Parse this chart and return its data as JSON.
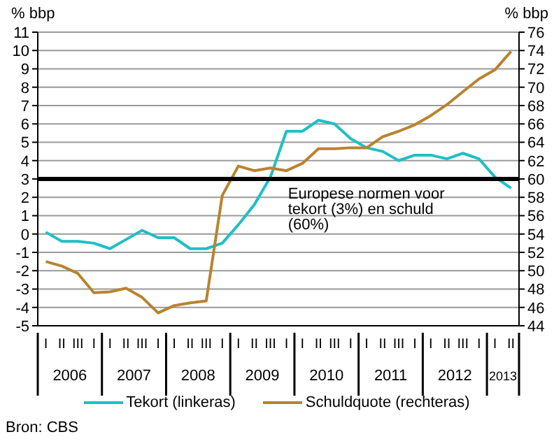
{
  "chart_data": {
    "type": "line",
    "categories": [
      "I",
      "II",
      "III",
      "I",
      "I",
      "II",
      "III",
      "I",
      "I",
      "II",
      "III",
      "I",
      "I",
      "II",
      "III",
      "I",
      "I",
      "II",
      "III",
      "I",
      "I",
      "II",
      "III",
      "I",
      "I",
      "II",
      "III",
      "I",
      "I",
      "II"
    ],
    "ylabel": "% bbp",
    "y2label": "% bbp",
    "ylim": [
      -5,
      11
    ],
    "yticks": [
      -5,
      -4,
      -3,
      -2,
      -1,
      0,
      1,
      2,
      3,
      4,
      5,
      6,
      7,
      8,
      9,
      10,
      11
    ],
    "y2lim": [
      44,
      76
    ],
    "y2ticks": [
      44,
      46,
      48,
      50,
      52,
      54,
      56,
      58,
      60,
      62,
      64,
      66,
      68,
      70,
      72,
      74,
      76
    ],
    "series": [
      {
        "name": "Tekort (linkeras)",
        "color": "#1fbfc6",
        "values": [
          0.1,
          -0.4,
          -0.4,
          -0.5,
          -0.8,
          -0.3,
          0.2,
          -0.2,
          -0.2,
          -0.8,
          -0.8,
          -0.5,
          0.5,
          1.6,
          3.1,
          5.6,
          5.6,
          6.2,
          6.0,
          5.2,
          4.7,
          4.5,
          4.0,
          4.3,
          4.3,
          4.1,
          4.4,
          4.1,
          3.1,
          2.5
        ]
      },
      {
        "name": "Schuldquote (rechteras)",
        "color": "#b8832f",
        "axis": "y2",
        "values": [
          51.0,
          50.5,
          49.7,
          47.6,
          47.7,
          48.1,
          47.1,
          45.4,
          46.2,
          46.5,
          46.7,
          58.2,
          61.4,
          60.9,
          61.2,
          60.9,
          61.7,
          63.3,
          63.3,
          63.4,
          63.4,
          64.6,
          65.2,
          65.9,
          66.9,
          68.1,
          69.5,
          70.9,
          71.9,
          73.9
        ]
      }
    ],
    "ref_lines": [
      {
        "axis": "y",
        "value": 3,
        "label": "Europese normen voor tekort (3%) en schuld  (60%)",
        "color": "#000000"
      }
    ],
    "grid": "y",
    "legend": "bottom",
    "marker": "none",
    "line_style": "solid",
    "annotations": [
      "2006",
      "2007",
      "2008",
      "2009",
      "2010",
      "2011",
      "2012",
      "2013",
      "Bron: CBS"
    ]
  }
}
